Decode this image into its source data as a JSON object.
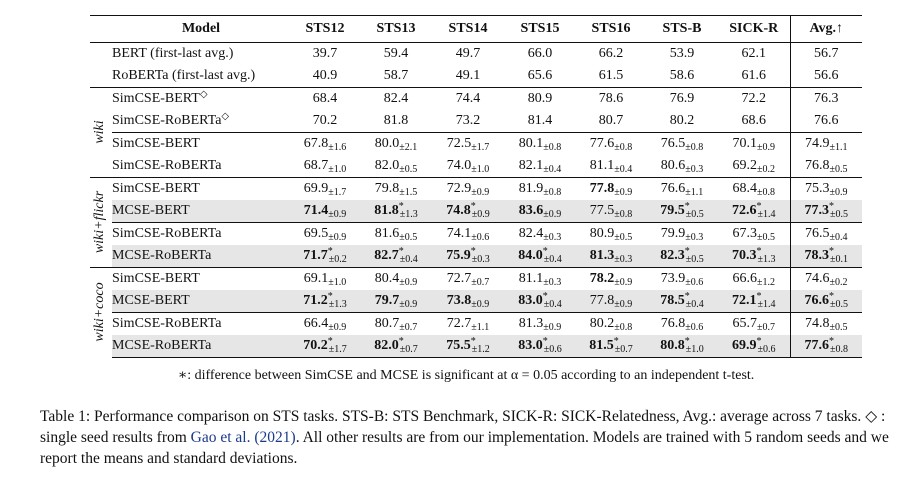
{
  "table": {
    "headers": [
      "Model",
      "STS12",
      "STS13",
      "STS14",
      "STS15",
      "STS16",
      "STS-B",
      "SICK-R",
      "Avg.↑"
    ],
    "group_labels": {
      "wiki": "wiki",
      "wiki_flickr": "wiki+flickr",
      "wiki_coco": "wiki+coco"
    },
    "rows": [
      {
        "model": "BERT (first-last avg.)",
        "cells": [
          {
            "v": "39.7"
          },
          {
            "v": "59.4"
          },
          {
            "v": "49.7"
          },
          {
            "v": "66.0"
          },
          {
            "v": "66.2"
          },
          {
            "v": "53.9"
          },
          {
            "v": "62.1"
          },
          {
            "v": "56.7"
          }
        ]
      },
      {
        "model": "RoBERTa (first-last avg.)",
        "cells": [
          {
            "v": "40.9"
          },
          {
            "v": "58.7"
          },
          {
            "v": "49.1"
          },
          {
            "v": "65.6"
          },
          {
            "v": "61.5"
          },
          {
            "v": "58.6"
          },
          {
            "v": "61.6"
          },
          {
            "v": "56.6"
          }
        ]
      },
      {
        "model": "SimCSE-BERT",
        "marker": "◇",
        "cells": [
          {
            "v": "68.4"
          },
          {
            "v": "82.4"
          },
          {
            "v": "74.4"
          },
          {
            "v": "80.9"
          },
          {
            "v": "78.6"
          },
          {
            "v": "76.9"
          },
          {
            "v": "72.2"
          },
          {
            "v": "76.3"
          }
        ]
      },
      {
        "model": "SimCSE-RoBERTa",
        "marker": "◇",
        "cells": [
          {
            "v": "70.2"
          },
          {
            "v": "81.8"
          },
          {
            "v": "73.2"
          },
          {
            "v": "81.4"
          },
          {
            "v": "80.7"
          },
          {
            "v": "80.2"
          },
          {
            "v": "68.6"
          },
          {
            "v": "76.6"
          }
        ]
      },
      {
        "model": "SimCSE-BERT",
        "cells": [
          {
            "v": "67.8",
            "sd": "±1.6"
          },
          {
            "v": "80.0",
            "sd": "±2.1"
          },
          {
            "v": "72.5",
            "sd": "±1.7"
          },
          {
            "v": "80.1",
            "sd": "±0.8"
          },
          {
            "v": "77.6",
            "sd": "±0.8"
          },
          {
            "v": "76.5",
            "sd": "±0.8"
          },
          {
            "v": "70.1",
            "sd": "±0.9"
          },
          {
            "v": "74.9",
            "sd": "±1.1"
          }
        ]
      },
      {
        "model": "SimCSE-RoBERTa",
        "cells": [
          {
            "v": "68.7",
            "sd": "±1.0"
          },
          {
            "v": "82.0",
            "sd": "±0.5"
          },
          {
            "v": "74.0",
            "sd": "±1.0"
          },
          {
            "v": "82.1",
            "sd": "±0.4"
          },
          {
            "v": "81.1",
            "sd": "±0.4"
          },
          {
            "v": "80.6",
            "sd": "±0.3"
          },
          {
            "v": "69.2",
            "sd": "±0.2"
          },
          {
            "v": "76.8",
            "sd": "±0.5"
          }
        ]
      },
      {
        "model": "SimCSE-BERT",
        "cells": [
          {
            "v": "69.9",
            "sd": "±1.7"
          },
          {
            "v": "79.8",
            "sd": "±1.5"
          },
          {
            "v": "72.9",
            "sd": "±0.9"
          },
          {
            "v": "81.9",
            "sd": "±0.8"
          },
          {
            "v": "77.8",
            "sd": "±0.9",
            "b": true
          },
          {
            "v": "76.6",
            "sd": "±1.1"
          },
          {
            "v": "68.4",
            "sd": "±0.8"
          },
          {
            "v": "75.3",
            "sd": "±0.9"
          }
        ]
      },
      {
        "model": "MCSE-BERT",
        "cells": [
          {
            "v": "71.4",
            "sd": "±0.9",
            "b": true
          },
          {
            "v": "81.8",
            "sd": "±1.3",
            "b": true,
            "s": true
          },
          {
            "v": "74.8",
            "sd": "±0.9",
            "b": true,
            "s": true
          },
          {
            "v": "83.6",
            "sd": "±0.9",
            "b": true
          },
          {
            "v": "77.5",
            "sd": "±0.8"
          },
          {
            "v": "79.5",
            "sd": "±0.5",
            "b": true,
            "s": true
          },
          {
            "v": "72.6",
            "sd": "±1.4",
            "b": true,
            "s": true
          },
          {
            "v": "77.3",
            "sd": "±0.5",
            "b": true,
            "s": true
          }
        ]
      },
      {
        "model": "SimCSE-RoBERTa",
        "cells": [
          {
            "v": "69.5",
            "sd": "±0.9"
          },
          {
            "v": "81.6",
            "sd": "±0.5"
          },
          {
            "v": "74.1",
            "sd": "±0.6"
          },
          {
            "v": "82.4",
            "sd": "±0.3"
          },
          {
            "v": "80.9",
            "sd": "±0.5"
          },
          {
            "v": "79.9",
            "sd": "±0.3"
          },
          {
            "v": "67.3",
            "sd": "±0.5"
          },
          {
            "v": "76.5",
            "sd": "±0.4"
          }
        ]
      },
      {
        "model": "MCSE-RoBERTa",
        "cells": [
          {
            "v": "71.7",
            "sd": "±0.2",
            "b": true,
            "s": true
          },
          {
            "v": "82.7",
            "sd": "±0.4",
            "b": true,
            "s": true
          },
          {
            "v": "75.9",
            "sd": "±0.3",
            "b": true,
            "s": true
          },
          {
            "v": "84.0",
            "sd": "±0.4",
            "b": true,
            "s": true
          },
          {
            "v": "81.3",
            "sd": "±0.3",
            "b": true
          },
          {
            "v": "82.3",
            "sd": "±0.5",
            "b": true,
            "s": true
          },
          {
            "v": "70.3",
            "sd": "±1.3",
            "b": true,
            "s": true
          },
          {
            "v": "78.3",
            "sd": "±0.1",
            "b": true,
            "s": true
          }
        ]
      },
      {
        "model": "SimCSE-BERT",
        "cells": [
          {
            "v": "69.1",
            "sd": "±1.0"
          },
          {
            "v": "80.4",
            "sd": "±0.9"
          },
          {
            "v": "72.7",
            "sd": "±0.7"
          },
          {
            "v": "81.1",
            "sd": "±0.3"
          },
          {
            "v": "78.2",
            "sd": "±0.9",
            "b": true
          },
          {
            "v": "73.9",
            "sd": "±0.6"
          },
          {
            "v": "66.6",
            "sd": "±1.2"
          },
          {
            "v": "74.6",
            "sd": "±0.2"
          }
        ]
      },
      {
        "model": "MCSE-BERT",
        "cells": [
          {
            "v": "71.2",
            "sd": "±1.3",
            "b": true,
            "s": true
          },
          {
            "v": "79.7",
            "sd": "±0.9",
            "b": true
          },
          {
            "v": "73.8",
            "sd": "±0.9",
            "b": true
          },
          {
            "v": "83.0",
            "sd": "±0.4",
            "b": true,
            "s": true
          },
          {
            "v": "77.8",
            "sd": "±0.9"
          },
          {
            "v": "78.5",
            "sd": "±0.4",
            "b": true,
            "s": true
          },
          {
            "v": "72.1",
            "sd": "±1.4",
            "b": true,
            "s": true
          },
          {
            "v": "76.6",
            "sd": "±0.5",
            "b": true,
            "s": true
          }
        ]
      },
      {
        "model": "SimCSE-RoBERTa",
        "cells": [
          {
            "v": "66.4",
            "sd": "±0.9"
          },
          {
            "v": "80.7",
            "sd": "±0.7"
          },
          {
            "v": "72.7",
            "sd": "±1.1"
          },
          {
            "v": "81.3",
            "sd": "±0.9"
          },
          {
            "v": "80.2",
            "sd": "±0.8"
          },
          {
            "v": "76.8",
            "sd": "±0.6"
          },
          {
            "v": "65.7",
            "sd": "±0.7"
          },
          {
            "v": "74.8",
            "sd": "±0.5"
          }
        ]
      },
      {
        "model": "MCSE-RoBERTa",
        "cells": [
          {
            "v": "70.2",
            "sd": "±1.7",
            "b": true,
            "s": true
          },
          {
            "v": "82.0",
            "sd": "±0.7",
            "b": true,
            "s": true
          },
          {
            "v": "75.5",
            "sd": "±1.2",
            "b": true,
            "s": true
          },
          {
            "v": "83.0",
            "sd": "±0.6",
            "b": true,
            "s": true
          },
          {
            "v": "81.5",
            "sd": "±0.7",
            "b": true,
            "s": true
          },
          {
            "v": "80.8",
            "sd": "±1.0",
            "b": true,
            "s": true
          },
          {
            "v": "69.9",
            "sd": "±0.6",
            "b": true,
            "s": true
          },
          {
            "v": "77.6",
            "sd": "±0.8",
            "b": true,
            "s": true
          }
        ]
      }
    ]
  },
  "footnote": "∗: difference between SimCSE and MCSE is significant at α = 0.05 according to an independent t-test.",
  "caption": {
    "label": "Table 1:",
    "text_1": "Performance comparison on STS tasks. STS-B: STS Benchmark, SICK-R: SICK-Relatedness, Avg.: average across 7 tasks.",
    "diamond": "◇",
    "text_2": ": single seed results from",
    "cite_author": "Gao et al.",
    "cite_year": "2021",
    "text_3": ". All other results are from our implementation. Models are trained with 5 random seeds and we report the means and standard deviations."
  }
}
